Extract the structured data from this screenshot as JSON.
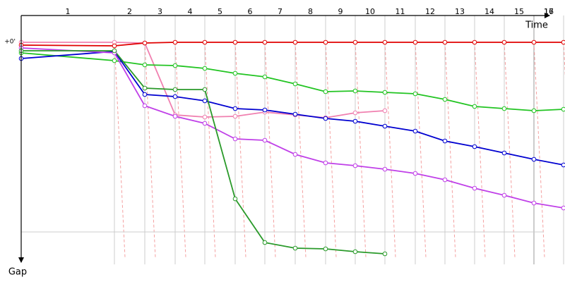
{
  "chart_data": {
    "type": "line",
    "x_axis_label": "Time",
    "y_axis_label": "Gap",
    "laps": [
      1,
      2,
      3,
      4,
      5,
      6,
      7,
      8,
      9,
      10,
      11,
      12,
      13,
      14,
      15,
      16,
      17
    ],
    "x": [
      0,
      132,
      175,
      218,
      260,
      303,
      345,
      388,
      431,
      473,
      515,
      558,
      600,
      642,
      684,
      726,
      768
    ],
    "xlim": [
      0,
      770
    ],
    "ylim": [
      -38,
      315
    ],
    "yticks": [
      {
        "value": 0,
        "label": "+0'"
      }
    ],
    "reference_y": 269,
    "series": [
      {
        "color": "#f080b0",
        "values": [
          0,
          0,
          1,
          103,
          106,
          105,
          99,
          103,
          107,
          100,
          97,
          null,
          null,
          null,
          null,
          null,
          null
        ]
      },
      {
        "color": "#e00000",
        "values": [
          4,
          5,
          1,
          0,
          0,
          0,
          0,
          0,
          0,
          0,
          0,
          0,
          0,
          0,
          0,
          0,
          0
        ]
      },
      {
        "color": "#22c422",
        "values": [
          15,
          26,
          32,
          33,
          37,
          44,
          49,
          59,
          70,
          69,
          71,
          73,
          81,
          91,
          94,
          97,
          95
        ]
      },
      {
        "color": "#0000d0",
        "values": [
          23,
          13,
          74,
          77,
          83,
          94,
          96,
          102,
          108,
          112,
          119,
          126,
          140,
          148,
          157,
          166,
          174
        ]
      },
      {
        "color": "#c040e8",
        "values": [
          8,
          15,
          90,
          105,
          115,
          137,
          139,
          159,
          171,
          175,
          180,
          186,
          195,
          207,
          217,
          228,
          235
        ]
      },
      {
        "color": "#2a9a2a",
        "values": [
          12,
          12,
          65,
          67,
          67,
          222,
          284,
          292,
          293,
          297,
          300,
          null,
          null,
          null,
          null,
          null,
          null
        ]
      }
    ]
  }
}
